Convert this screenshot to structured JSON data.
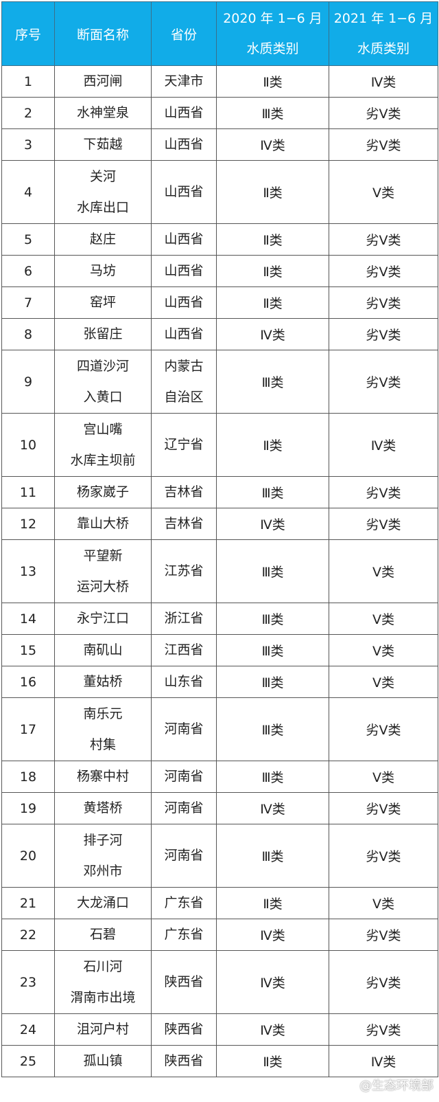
{
  "header": {
    "cols": [
      "序号",
      "断面名称",
      "省份",
      [
        "2020 年 1−6 月",
        "水质类别"
      ],
      [
        "2021 年 1−6 月",
        "水质类别"
      ]
    ]
  },
  "rows": [
    {
      "no": "1",
      "name": [
        "西河闸"
      ],
      "prov": [
        "天津市"
      ],
      "y2020": "Ⅱ类",
      "y2021": "Ⅳ类"
    },
    {
      "no": "2",
      "name": [
        "水神堂泉"
      ],
      "prov": [
        "山西省"
      ],
      "y2020": "Ⅲ类",
      "y2021": "劣Ⅴ类"
    },
    {
      "no": "3",
      "name": [
        "下茹越"
      ],
      "prov": [
        "山西省"
      ],
      "y2020": "Ⅳ类",
      "y2021": "劣Ⅴ类"
    },
    {
      "no": "4",
      "name": [
        "关河",
        "水库出口"
      ],
      "prov": [
        "山西省"
      ],
      "y2020": "Ⅱ类",
      "y2021": "Ⅴ类"
    },
    {
      "no": "5",
      "name": [
        "赵庄"
      ],
      "prov": [
        "山西省"
      ],
      "y2020": "Ⅱ类",
      "y2021": "劣Ⅴ类"
    },
    {
      "no": "6",
      "name": [
        "马坊"
      ],
      "prov": [
        "山西省"
      ],
      "y2020": "Ⅱ类",
      "y2021": "劣Ⅴ类"
    },
    {
      "no": "7",
      "name": [
        "窑坪"
      ],
      "prov": [
        "山西省"
      ],
      "y2020": "Ⅱ类",
      "y2021": "劣Ⅴ类"
    },
    {
      "no": "8",
      "name": [
        "张留庄"
      ],
      "prov": [
        "山西省"
      ],
      "y2020": "Ⅳ类",
      "y2021": "劣Ⅴ类"
    },
    {
      "no": "9",
      "name": [
        "四道沙河",
        "入黄口"
      ],
      "prov": [
        "内蒙古",
        "自治区"
      ],
      "y2020": "Ⅲ类",
      "y2021": "劣Ⅴ类"
    },
    {
      "no": "10",
      "name": [
        "宫山嘴",
        "水库主坝前"
      ],
      "prov": [
        "辽宁省"
      ],
      "y2020": "Ⅱ类",
      "y2021": "Ⅳ类"
    },
    {
      "no": "11",
      "name": [
        "杨家崴子"
      ],
      "prov": [
        "吉林省"
      ],
      "y2020": "Ⅲ类",
      "y2021": "劣Ⅴ类"
    },
    {
      "no": "12",
      "name": [
        "靠山大桥"
      ],
      "prov": [
        "吉林省"
      ],
      "y2020": "Ⅳ类",
      "y2021": "劣Ⅴ类"
    },
    {
      "no": "13",
      "name": [
        "平望新",
        "运河大桥"
      ],
      "prov": [
        "江苏省"
      ],
      "y2020": "Ⅲ类",
      "y2021": "Ⅴ类"
    },
    {
      "no": "14",
      "name": [
        "永宁江口"
      ],
      "prov": [
        "浙江省"
      ],
      "y2020": "Ⅲ类",
      "y2021": "Ⅴ类"
    },
    {
      "no": "15",
      "name": [
        "南矶山"
      ],
      "prov": [
        "江西省"
      ],
      "y2020": "Ⅲ类",
      "y2021": "Ⅴ类"
    },
    {
      "no": "16",
      "name": [
        "董姑桥"
      ],
      "prov": [
        "山东省"
      ],
      "y2020": "Ⅲ类",
      "y2021": "Ⅴ类"
    },
    {
      "no": "17",
      "name": [
        "南乐元",
        "村集"
      ],
      "prov": [
        "河南省"
      ],
      "y2020": "Ⅲ类",
      "y2021": "劣Ⅴ类"
    },
    {
      "no": "18",
      "name": [
        "杨寨中村"
      ],
      "prov": [
        "河南省"
      ],
      "y2020": "Ⅲ类",
      "y2021": "Ⅴ类"
    },
    {
      "no": "19",
      "name": [
        "黄塔桥"
      ],
      "prov": [
        "河南省"
      ],
      "y2020": "Ⅳ类",
      "y2021": "劣Ⅴ类"
    },
    {
      "no": "20",
      "name": [
        "排子河",
        "邓州市"
      ],
      "prov": [
        "河南省"
      ],
      "y2020": "Ⅲ类",
      "y2021": "劣Ⅴ类"
    },
    {
      "no": "21",
      "name": [
        "大龙涌口"
      ],
      "prov": [
        "广东省"
      ],
      "y2020": "Ⅱ类",
      "y2021": "Ⅴ类"
    },
    {
      "no": "22",
      "name": [
        "石碧"
      ],
      "prov": [
        "广东省"
      ],
      "y2020": "Ⅳ类",
      "y2021": "劣Ⅴ类"
    },
    {
      "no": "23",
      "name": [
        "石川河",
        "渭南市出境"
      ],
      "prov": [
        "陕西省"
      ],
      "y2020": "Ⅳ类",
      "y2021": "劣Ⅴ类"
    },
    {
      "no": "24",
      "name": [
        "沮河户村"
      ],
      "prov": [
        "陕西省"
      ],
      "y2020": "Ⅳ类",
      "y2021": "劣Ⅴ类"
    },
    {
      "no": "25",
      "name": [
        "孤山镇"
      ],
      "prov": [
        "陕西省"
      ],
      "y2020": "Ⅱ类",
      "y2021": "Ⅳ类"
    }
  ],
  "watermark": "@生态环境部",
  "colors": {
    "header_bg": "#11ace8",
    "header_text": "#ffffff"
  }
}
